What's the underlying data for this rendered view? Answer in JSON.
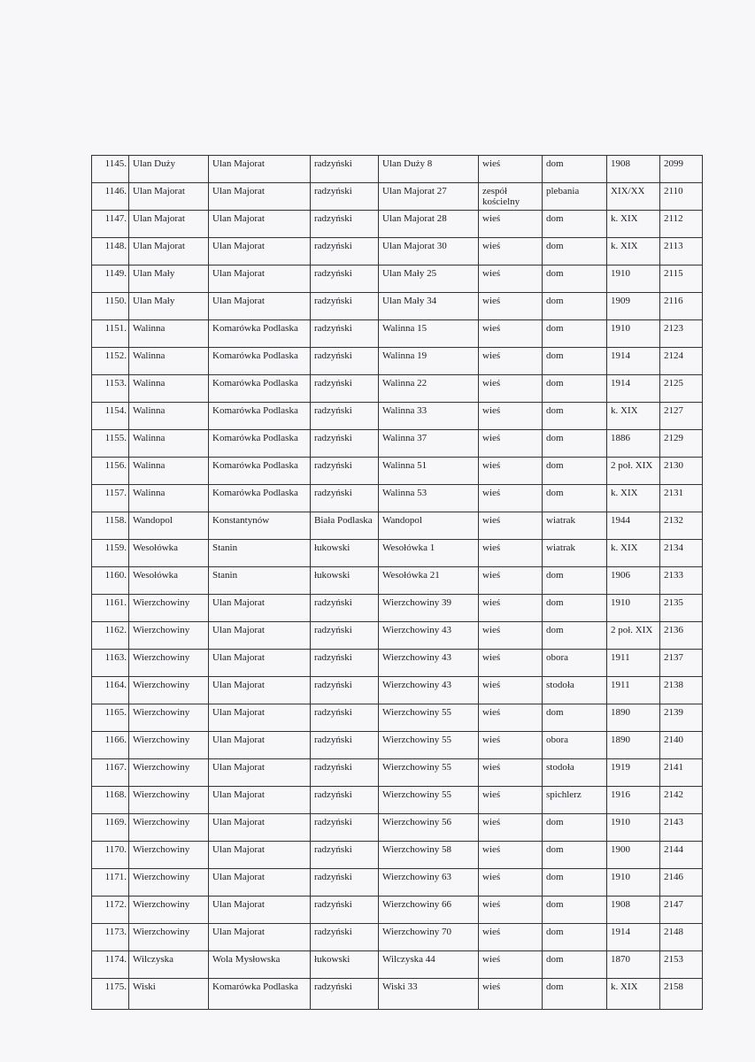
{
  "table": {
    "rows": [
      [
        "1145.",
        "Ulan Duży",
        "Ulan Majorat",
        "radzyński",
        "Ulan Duży 8",
        "wieś",
        "dom",
        "1908",
        "2099"
      ],
      [
        "1146.",
        "Ulan Majorat",
        "Ulan Majorat",
        "radzyński",
        "Ulan Majorat 27",
        "zespół kościelny",
        "plebania",
        "XIX/XX",
        "2110"
      ],
      [
        "1147.",
        "Ulan Majorat",
        "Ulan Majorat",
        "radzyński",
        "Ulan Majorat 28",
        "wieś",
        "dom",
        "k. XIX",
        "2112"
      ],
      [
        "1148.",
        "Ulan Majorat",
        "Ulan Majorat",
        "radzyński",
        "Ulan Majorat 30",
        "wieś",
        "dom",
        "k. XIX",
        "2113"
      ],
      [
        "1149.",
        "Ulan Mały",
        "Ulan Majorat",
        "radzyński",
        "Ulan Mały 25",
        "wieś",
        "dom",
        "1910",
        "2115"
      ],
      [
        "1150.",
        "Ulan Mały",
        "Ulan Majorat",
        "radzyński",
        "Ulan Mały 34",
        "wieś",
        "dom",
        "1909",
        "2116"
      ],
      [
        "1151.",
        "Walinna",
        "Komarówka Podlaska",
        "radzyński",
        "Walinna 15",
        "wieś",
        "dom",
        "1910",
        "2123"
      ],
      [
        "1152.",
        "Walinna",
        "Komarówka Podlaska",
        "radzyński",
        "Walinna 19",
        "wieś",
        "dom",
        "1914",
        "2124"
      ],
      [
        "1153.",
        "Walinna",
        "Komarówka Podlaska",
        "radzyński",
        "Walinna 22",
        "wieś",
        "dom",
        "1914",
        "2125"
      ],
      [
        "1154.",
        "Walinna",
        "Komarówka Podlaska",
        "radzyński",
        "Walinna 33",
        "wieś",
        "dom",
        "k. XIX",
        "2127"
      ],
      [
        "1155.",
        "Walinna",
        "Komarówka Podlaska",
        "radzyński",
        "Walinna 37",
        "wieś",
        "dom",
        "1886",
        "2129"
      ],
      [
        "1156.",
        "Walinna",
        "Komarówka Podlaska",
        "radzyński",
        "Walinna 51",
        "wieś",
        "dom",
        "2 poł. XIX",
        "2130"
      ],
      [
        "1157.",
        "Walinna",
        "Komarówka Podlaska",
        "radzyński",
        "Walinna 53",
        "wieś",
        "dom",
        "k. XIX",
        "2131"
      ],
      [
        "1158.",
        "Wandopol",
        "Konstantynów",
        "Biała Podlaska",
        "Wandopol",
        "wieś",
        "wiatrak",
        "1944",
        "2132"
      ],
      [
        "1159.",
        "Wesołówka",
        "Stanin",
        "łukowski",
        "Wesołówka 1",
        "wieś",
        "wiatrak",
        "k. XIX",
        "2134"
      ],
      [
        "1160.",
        "Wesołówka",
        "Stanin",
        "łukowski",
        "Wesołówka 21",
        "wieś",
        "dom",
        "1906",
        "2133"
      ],
      [
        "1161.",
        "Wierzchowiny",
        "Ulan Majorat",
        "radzyński",
        "Wierzchowiny 39",
        "wieś",
        "dom",
        "1910",
        "2135"
      ],
      [
        "1162.",
        "Wierzchowiny",
        "Ulan Majorat",
        "radzyński",
        "Wierzchowiny 43",
        "wieś",
        "dom",
        "2 poł. XIX",
        "2136"
      ],
      [
        "1163.",
        "Wierzchowiny",
        "Ulan Majorat",
        "radzyński",
        "Wierzchowiny 43",
        "wieś",
        "obora",
        "1911",
        "2137"
      ],
      [
        "1164.",
        "Wierzchowiny",
        "Ulan Majorat",
        "radzyński",
        "Wierzchowiny 43",
        "wieś",
        "stodoła",
        "1911",
        "2138"
      ],
      [
        "1165.",
        "Wierzchowiny",
        "Ulan Majorat",
        "radzyński",
        "Wierzchowiny 55",
        "wieś",
        "dom",
        "1890",
        "2139"
      ],
      [
        "1166.",
        "Wierzchowiny",
        "Ulan Majorat",
        "radzyński",
        "Wierzchowiny 55",
        "wieś",
        "obora",
        "1890",
        "2140"
      ],
      [
        "1167.",
        "Wierzchowiny",
        "Ulan Majorat",
        "radzyński",
        "Wierzchowiny 55",
        "wieś",
        "stodoła",
        "1919",
        "2141"
      ],
      [
        "1168.",
        "Wierzchowiny",
        "Ulan Majorat",
        "radzyński",
        "Wierzchowiny 55",
        "wieś",
        "spichlerz",
        "1916",
        "2142"
      ],
      [
        "1169.",
        "Wierzchowiny",
        "Ulan Majorat",
        "radzyński",
        "Wierzchowiny 56",
        "wieś",
        "dom",
        "1910",
        "2143"
      ],
      [
        "1170.",
        "Wierzchowiny",
        "Ulan Majorat",
        "radzyński",
        "Wierzchowiny 58",
        "wieś",
        "dom",
        "1900",
        "2144"
      ],
      [
        "1171.",
        "Wierzchowiny",
        "Ulan Majorat",
        "radzyński",
        "Wierzchowiny 63",
        "wieś",
        "dom",
        "1910",
        "2146"
      ],
      [
        "1172.",
        "Wierzchowiny",
        "Ulan Majorat",
        "radzyński",
        "Wierzchowiny 66",
        "wieś",
        "dom",
        "1908",
        "2147"
      ],
      [
        "1173.",
        "Wierzchowiny",
        "Ulan Majorat",
        "radzyński",
        "Wierzchowiny 70",
        "wieś",
        "dom",
        "1914",
        "2148"
      ],
      [
        "1174.",
        "Wilczyska",
        "Wola Mysłowska",
        "łukowski",
        "Wilczyska 44",
        "wieś",
        "dom",
        "1870",
        "2153"
      ],
      [
        "1175.",
        "Wiski",
        "Komarówka Podlaska",
        "radzyński",
        "Wiski 33",
        "wieś",
        "dom",
        "k. XIX",
        "2158"
      ]
    ]
  }
}
